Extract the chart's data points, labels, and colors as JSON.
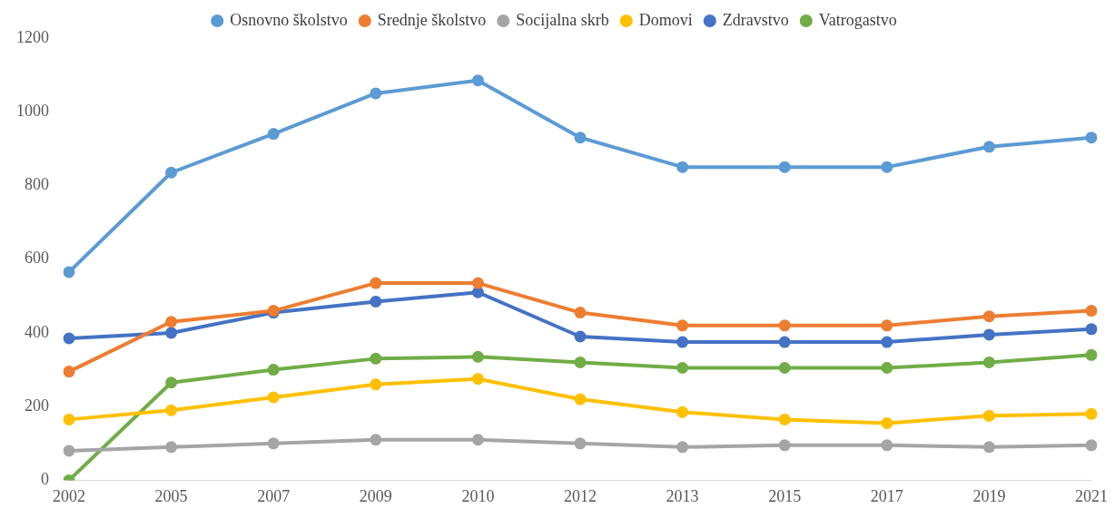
{
  "chart_data": {
    "type": "line",
    "categories": [
      "2002",
      "2005",
      "2007",
      "2009",
      "2010",
      "2012",
      "2013",
      "2015",
      "2017",
      "2019",
      "2021"
    ],
    "series": [
      {
        "name": "Osnovno školstvo",
        "color": "#5b9bd5",
        "values": [
          565,
          835,
          940,
          1050,
          1085,
          930,
          850,
          850,
          850,
          905,
          930
        ]
      },
      {
        "name": "Srednje školstvo",
        "color": "#ed7d31",
        "values": [
          295,
          430,
          460,
          535,
          535,
          455,
          420,
          420,
          420,
          445,
          460
        ]
      },
      {
        "name": "Socijalna skrb",
        "color": "#a5a5a5",
        "values": [
          80,
          90,
          100,
          110,
          110,
          100,
          90,
          95,
          95,
          90,
          95
        ]
      },
      {
        "name": "Domovi",
        "color": "#ffc000",
        "values": [
          165,
          190,
          225,
          260,
          275,
          220,
          185,
          165,
          155,
          175,
          180
        ]
      },
      {
        "name": "Zdravstvo",
        "color": "#4472c4",
        "values": [
          385,
          400,
          455,
          485,
          510,
          390,
          375,
          375,
          375,
          395,
          410
        ]
      },
      {
        "name": "Vatrogastvo",
        "color": "#70ad47",
        "values": [
          0,
          265,
          300,
          330,
          335,
          320,
          305,
          305,
          305,
          320,
          340
        ]
      }
    ],
    "ylim": [
      0,
      1200
    ],
    "yticks": [
      0,
      200,
      400,
      600,
      800,
      1000,
      1200
    ],
    "grid": false,
    "legend": "top",
    "marker": "circle",
    "line_style": "solid"
  }
}
